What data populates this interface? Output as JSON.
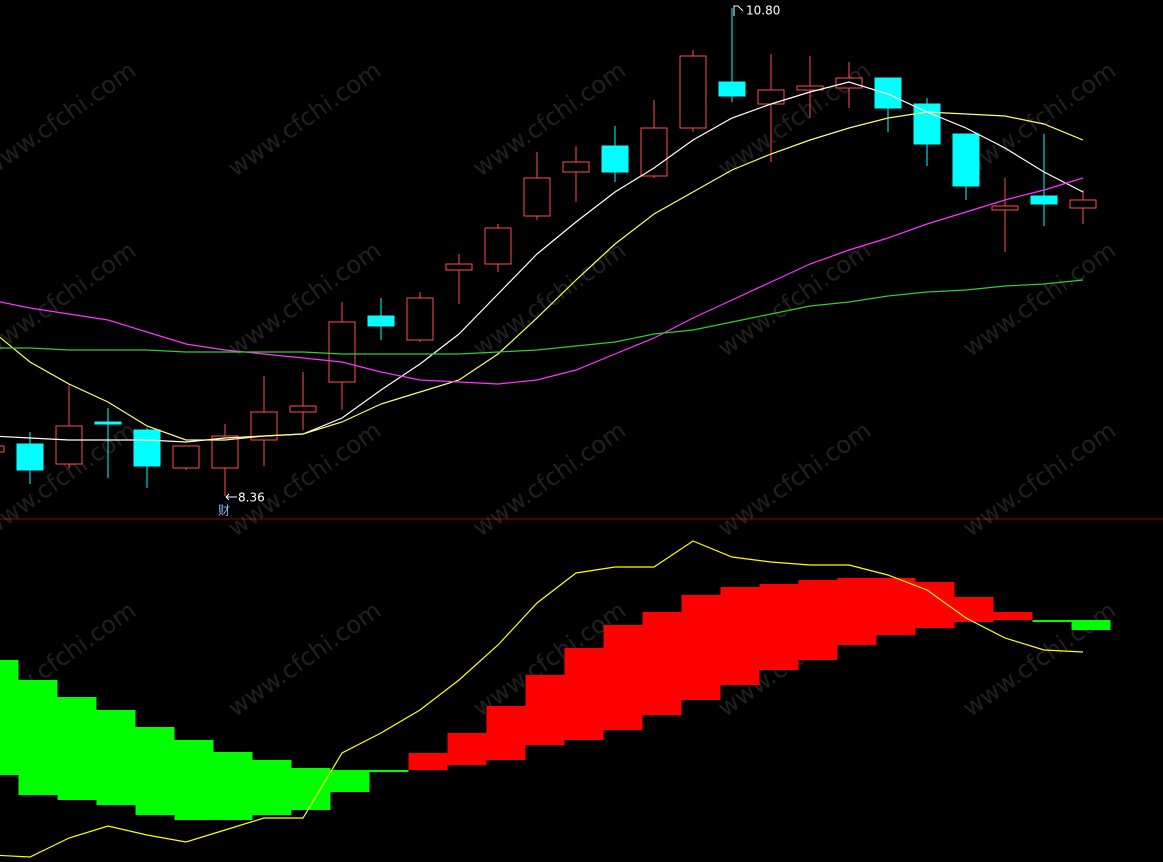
{
  "chart_data": [
    {
      "type": "candlestick",
      "ylim": [
        8.25,
        10.84
      ],
      "grid": true,
      "up_color": "#ff4d4d",
      "down_color": "#00ffff",
      "open": [
        8.58,
        8.62,
        8.52,
        8.73,
        8.69,
        8.5,
        8.5,
        8.64,
        8.78,
        8.93,
        9.26,
        9.14,
        9.49,
        9.52,
        9.76,
        9.98,
        10.11,
        9.96,
        10.2,
        10.43,
        10.32,
        10.39,
        10.4,
        10.45,
        10.32,
        10.17,
        9.79,
        9.86,
        9.8
      ],
      "high": [
        8.64,
        8.68,
        8.92,
        8.8,
        8.7,
        8.61,
        8.72,
        8.96,
        8.98,
        9.33,
        9.35,
        9.38,
        9.57,
        9.72,
        10.08,
        10.11,
        10.21,
        10.34,
        10.59,
        10.8,
        10.57,
        10.56,
        10.53,
        10.45,
        10.35,
        10.17,
        9.95,
        10.17,
        9.89
      ],
      "low": [
        8.55,
        8.42,
        8.5,
        8.45,
        8.4,
        8.49,
        8.36,
        8.51,
        8.69,
        8.79,
        9.14,
        9.13,
        9.32,
        9.48,
        9.74,
        9.83,
        9.93,
        9.95,
        10.18,
        10.33,
        10.03,
        10.25,
        10.3,
        10.18,
        10.01,
        9.84,
        9.58,
        9.71,
        9.72
      ],
      "close": [
        8.61,
        8.49,
        8.71,
        8.72,
        8.51,
        8.61,
        8.66,
        8.78,
        8.81,
        9.23,
        9.21,
        9.35,
        9.52,
        9.7,
        9.95,
        10.03,
        9.98,
        10.2,
        10.56,
        10.36,
        10.39,
        10.41,
        10.45,
        10.3,
        10.12,
        9.91,
        9.81,
        9.82,
        9.84
      ],
      "lines": [
        {
          "color": "#ffffff",
          "values": [
            8.66,
            8.65,
            8.64,
            8.64,
            8.64,
            8.63,
            8.65,
            8.66,
            8.67,
            8.75,
            8.89,
            9.02,
            9.17,
            9.37,
            9.57,
            9.73,
            9.88,
            10.0,
            10.14,
            10.25,
            10.32,
            10.38,
            10.43,
            10.37,
            10.28,
            10.2,
            10.1,
            9.98,
            9.88
          ]
        },
        {
          "color": "#ffff66",
          "values": [
            9.19,
            9.03,
            8.92,
            8.83,
            8.71,
            8.64,
            8.64,
            8.66,
            8.67,
            8.73,
            8.82,
            8.88,
            8.94,
            9.07,
            9.25,
            9.44,
            9.62,
            9.77,
            9.88,
            9.99,
            10.07,
            10.14,
            10.2,
            10.25,
            10.28,
            10.27,
            10.26,
            10.22,
            10.14
          ]
        },
        {
          "color": "#ff33ff",
          "values": [
            9.34,
            9.3,
            9.27,
            9.24,
            9.18,
            9.12,
            9.09,
            9.07,
            9.05,
            9.03,
            8.98,
            8.94,
            8.93,
            8.92,
            8.94,
            8.99,
            9.07,
            9.15,
            9.25,
            9.34,
            9.43,
            9.52,
            9.59,
            9.65,
            9.72,
            9.78,
            9.84,
            9.89,
            9.95
          ]
        },
        {
          "color": "#33cc33",
          "values": [
            9.1,
            9.1,
            9.09,
            9.09,
            9.09,
            9.08,
            9.08,
            9.08,
            9.08,
            9.07,
            9.07,
            9.07,
            9.07,
            9.08,
            9.09,
            9.11,
            9.13,
            9.17,
            9.19,
            9.23,
            9.27,
            9.31,
            9.33,
            9.36,
            9.38,
            9.39,
            9.41,
            9.42,
            9.44
          ]
        }
      ],
      "annotations": [
        {
          "text": "10.80",
          "color": "#ffffff"
        },
        {
          "text": "8.36",
          "color": "#ffffff"
        },
        {
          "text": "财",
          "color": "#8fb4ff"
        }
      ],
      "watermark": "www.cfchi.com"
    },
    {
      "type": "rangebar",
      "ylim": [
        -1.62,
        1.8
      ],
      "grid": true,
      "highs": [
        0.4,
        0.2,
        0.03,
        -0.1,
        -0.27,
        -0.4,
        -0.52,
        -0.6,
        -0.68,
        -0.7,
        -0.7,
        -0.53,
        -0.33,
        -0.06,
        0.25,
        0.52,
        0.75,
        0.88,
        1.05,
        1.13,
        1.16,
        1.2,
        1.22,
        1.22,
        1.18,
        1.03,
        0.88,
        0.8,
        0.8
      ],
      "lows": [
        -0.75,
        -0.95,
        -1.0,
        -1.05,
        -1.15,
        -1.2,
        -1.2,
        -1.15,
        -1.1,
        -0.92,
        -0.72,
        -0.7,
        -0.65,
        -0.6,
        -0.45,
        -0.4,
        -0.3,
        -0.15,
        0.0,
        0.15,
        0.3,
        0.4,
        0.55,
        0.65,
        0.72,
        0.78,
        0.8,
        0.78,
        0.7
      ],
      "colors": [
        "#00ff00",
        "#00ff00",
        "#00ff00",
        "#00ff00",
        "#00ff00",
        "#00ff00",
        "#00ff00",
        "#00ff00",
        "#00ff00",
        "#00ff00",
        "#00ff00",
        "#ff0000",
        "#ff0000",
        "#ff0000",
        "#ff0000",
        "#ff0000",
        "#ff0000",
        "#ff0000",
        "#ff0000",
        "#ff0000",
        "#ff0000",
        "#ff0000",
        "#ff0000",
        "#ff0000",
        "#ff0000",
        "#ff0000",
        "#ff0000",
        "#00ff00",
        "#00ff00"
      ],
      "lines": [
        {
          "color": "#ffff00",
          "values": [
            -1.55,
            -1.57,
            -1.38,
            -1.26,
            -1.35,
            -1.42,
            -1.3,
            -1.18,
            -1.18,
            -0.53,
            -0.33,
            -0.1,
            0.2,
            0.55,
            0.97,
            1.27,
            1.33,
            1.33,
            1.59,
            1.43,
            1.38,
            1.35,
            1.35,
            1.25,
            1.1,
            0.82,
            0.62,
            0.5,
            0.48
          ]
        }
      ]
    }
  ]
}
